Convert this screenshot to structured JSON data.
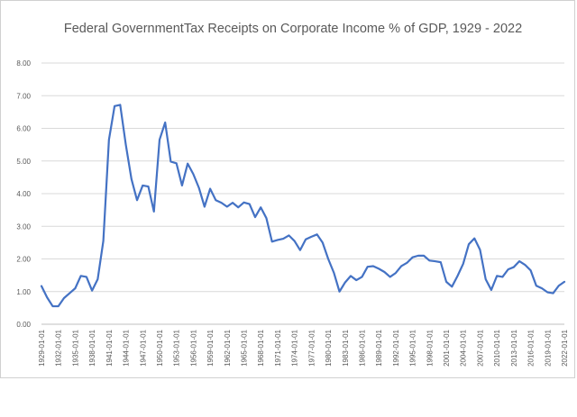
{
  "chart_data": {
    "type": "line",
    "title": "Federal GovernmentTax Receipts on Corporate Income % of GDP, 1929 - 2022",
    "xlabel": "",
    "ylabel": "",
    "ylim": [
      0,
      8
    ],
    "yticks": [
      "0.00",
      "1.00",
      "2.00",
      "3.00",
      "4.00",
      "5.00",
      "6.00",
      "7.00",
      "8.00"
    ],
    "xticks": [
      "1929-01-01",
      "1932-01-01",
      "1935-01-01",
      "1938-01-01",
      "1941-01-01",
      "1944-01-01",
      "1947-01-01",
      "1950-01-01",
      "1953-01-01",
      "1956-01-01",
      "1959-01-01",
      "1962-01-01",
      "1965-01-01",
      "1968-01-01",
      "1971-01-01",
      "1974-01-01",
      "1977-01-01",
      "1980-01-01",
      "1983-01-01",
      "1986-01-01",
      "1989-01-01",
      "1992-01-01",
      "1995-01-01",
      "1998-01-01",
      "2001-01-01",
      "2004-01-01",
      "2007-01-01",
      "2010-01-01",
      "2013-01-01",
      "2016-01-01",
      "2019-01-01",
      "2022-01-01"
    ],
    "grid": true,
    "legend": "none",
    "series_color": "#4472c4",
    "x": [
      1929,
      1930,
      1931,
      1932,
      1933,
      1934,
      1935,
      1936,
      1937,
      1938,
      1939,
      1940,
      1941,
      1942,
      1943,
      1944,
      1945,
      1946,
      1947,
      1948,
      1949,
      1950,
      1951,
      1952,
      1953,
      1954,
      1955,
      1956,
      1957,
      1958,
      1959,
      1960,
      1961,
      1962,
      1963,
      1964,
      1965,
      1966,
      1967,
      1968,
      1969,
      1970,
      1971,
      1972,
      1973,
      1974,
      1975,
      1976,
      1977,
      1978,
      1979,
      1980,
      1981,
      1982,
      1983,
      1984,
      1985,
      1986,
      1987,
      1988,
      1989,
      1990,
      1991,
      1992,
      1993,
      1994,
      1995,
      1996,
      1997,
      1998,
      1999,
      2000,
      2001,
      2002,
      2003,
      2004,
      2005,
      2006,
      2007,
      2008,
      2009,
      2010,
      2011,
      2012,
      2013,
      2014,
      2015,
      2016,
      2017,
      2018,
      2019,
      2020,
      2021,
      2022
    ],
    "values": [
      1.17,
      0.82,
      0.55,
      0.55,
      0.8,
      0.95,
      1.1,
      1.48,
      1.45,
      1.03,
      1.38,
      2.55,
      5.65,
      6.68,
      6.72,
      5.5,
      4.45,
      3.8,
      4.25,
      4.22,
      3.45,
      5.65,
      6.18,
      4.98,
      4.93,
      4.25,
      4.92,
      4.6,
      4.18,
      3.6,
      4.15,
      3.8,
      3.72,
      3.6,
      3.72,
      3.58,
      3.73,
      3.68,
      3.28,
      3.58,
      3.25,
      2.53,
      2.58,
      2.62,
      2.72,
      2.55,
      2.27,
      2.6,
      2.68,
      2.75,
      2.5,
      2.0,
      1.58,
      1.0,
      1.28,
      1.48,
      1.35,
      1.45,
      1.76,
      1.78,
      1.7,
      1.6,
      1.45,
      1.57,
      1.78,
      1.88,
      2.05,
      2.1,
      2.1,
      1.95,
      1.93,
      1.9,
      1.3,
      1.15,
      1.48,
      1.85,
      2.45,
      2.63,
      2.28,
      1.38,
      1.05,
      1.48,
      1.45,
      1.68,
      1.75,
      1.93,
      1.82,
      1.65,
      1.18,
      1.1,
      0.98,
      0.95,
      1.18,
      1.3
    ]
  }
}
